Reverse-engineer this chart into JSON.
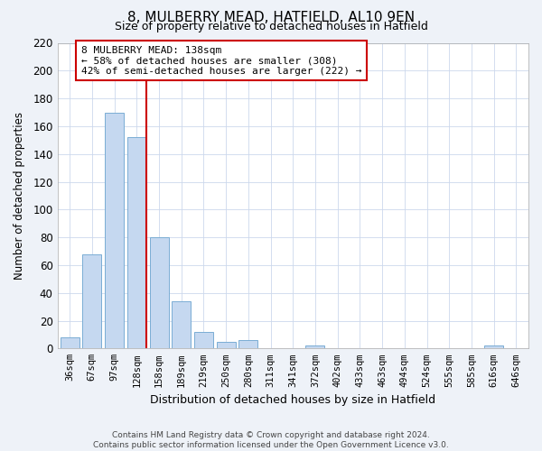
{
  "title": "8, MULBERRY MEAD, HATFIELD, AL10 9EN",
  "subtitle": "Size of property relative to detached houses in Hatfield",
  "xlabel": "Distribution of detached houses by size in Hatfield",
  "ylabel": "Number of detached properties",
  "bar_labels": [
    "36sqm",
    "67sqm",
    "97sqm",
    "128sqm",
    "158sqm",
    "189sqm",
    "219sqm",
    "250sqm",
    "280sqm",
    "311sqm",
    "341sqm",
    "372sqm",
    "402sqm",
    "433sqm",
    "463sqm",
    "494sqm",
    "524sqm",
    "555sqm",
    "585sqm",
    "616sqm",
    "646sqm"
  ],
  "bar_values": [
    8,
    68,
    170,
    152,
    80,
    34,
    12,
    5,
    6,
    0,
    0,
    2,
    0,
    0,
    0,
    0,
    0,
    0,
    0,
    2,
    0
  ],
  "bar_color": "#c5d8f0",
  "bar_edge_color": "#7aadd4",
  "vline_color": "#cc0000",
  "ylim": [
    0,
    220
  ],
  "yticks": [
    0,
    20,
    40,
    60,
    80,
    100,
    120,
    140,
    160,
    180,
    200,
    220
  ],
  "annotation_line1": "8 MULBERRY MEAD: 138sqm",
  "annotation_line2": "← 58% of detached houses are smaller (308)",
  "annotation_line3": "42% of semi-detached houses are larger (222) →",
  "annotation_box_color": "#ffffff",
  "annotation_box_edge": "#cc0000",
  "footer_text": "Contains HM Land Registry data © Crown copyright and database right 2024.\nContains public sector information licensed under the Open Government Licence v3.0.",
  "bg_color": "#eef2f8",
  "plot_bg_color": "#ffffff",
  "grid_color": "#ccd8ec"
}
